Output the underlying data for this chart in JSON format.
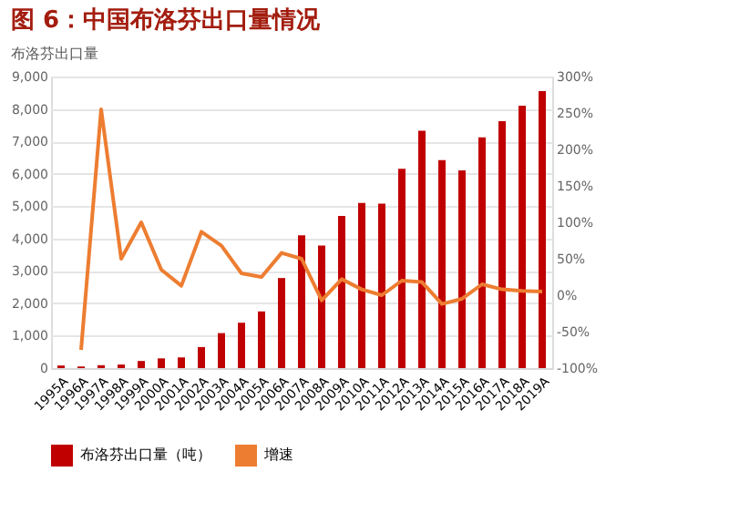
{
  "chart_data": {
    "type": "bar",
    "title": "图 6：中国布洛芬出口量情况",
    "subtitle": "布洛芬出口量",
    "categories": [
      "1995A",
      "1996A",
      "1997A",
      "1998A",
      "1999A",
      "2000A",
      "2001A",
      "2002A",
      "2003A",
      "2004A",
      "2005A",
      "2006A",
      "2007A",
      "2008A",
      "2009A",
      "2010A",
      "2011A",
      "2012A",
      "2013A",
      "2014A",
      "2015A",
      "2016A",
      "2017A",
      "2018A",
      "2019A"
    ],
    "series": [
      {
        "name": "布洛芬出口量（吨）",
        "color": "#c00000",
        "values": [
          80,
          50,
          90,
          110,
          220,
          300,
          330,
          650,
          1080,
          1400,
          1750,
          2780,
          4100,
          3780,
          4700,
          5100,
          5080,
          6150,
          7330,
          6420,
          6100,
          7120,
          7620,
          8100,
          8550
        ]
      },
      {
        "name": "增速",
        "type": "line",
        "axis": "y2",
        "color": "#ed7d31",
        "values": [
          null,
          -75,
          255,
          50,
          100,
          35,
          13,
          87,
          68,
          30,
          25,
          58,
          50,
          -7,
          22,
          8,
          0,
          20,
          18,
          -12,
          -5,
          15,
          8,
          6,
          5
        ]
      }
    ],
    "ylim": [
      0,
      9000
    ],
    "yticks": [
      0,
      {
        "value": 1000,
        "label": "1,000"
      },
      {
        "value": 2000,
        "label": "2,000"
      },
      {
        "value": 3000,
        "label": "3,000"
      },
      {
        "value": 4000,
        "label": "4,000"
      },
      {
        "value": 5000,
        "label": "5,000"
      },
      {
        "value": 6000,
        "label": "6,000"
      },
      {
        "value": 7000,
        "label": "7,000"
      },
      {
        "value": 8000,
        "label": "8,000"
      },
      {
        "value": 9000,
        "label": "9,000"
      }
    ],
    "y2lim": [
      -100,
      300
    ],
    "y2ticks": [
      {
        "value": -100,
        "label": "-100%"
      },
      {
        "value": -50,
        "label": "-50%"
      },
      {
        "value": 0,
        "label": "0%"
      },
      {
        "value": 50,
        "label": "50%"
      },
      {
        "value": 100,
        "label": "100%"
      },
      {
        "value": 150,
        "label": "150%"
      },
      {
        "value": 200,
        "label": "200%"
      },
      {
        "value": 250,
        "label": "250%"
      },
      {
        "value": 300,
        "label": "300%"
      }
    ],
    "grid": "y",
    "legend": "bottom",
    "marker": "none",
    "line_style": "solid"
  }
}
